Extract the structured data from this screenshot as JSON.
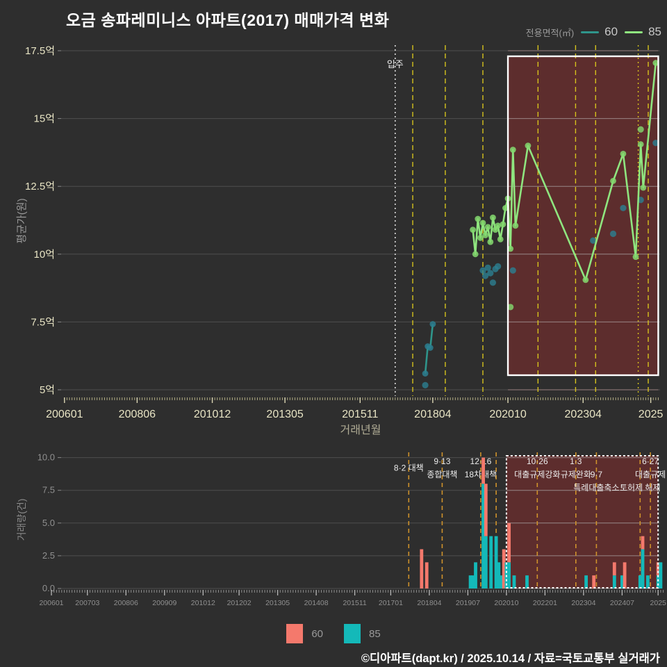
{
  "title": "오금 송파레미니스 아파트(2017) 매매가격 변화",
  "legend_top": {
    "label": "전용면적(㎡)",
    "items": [
      {
        "name": "60",
        "color": "#2f958b"
      },
      {
        "name": "85",
        "color": "#8fe57f"
      }
    ]
  },
  "legend_bottom": {
    "items": [
      {
        "name": "60",
        "color": "#f4796c"
      },
      {
        "name": "85",
        "color": "#14b9b9"
      }
    ]
  },
  "footer": "©디아파트(dapt.kr) / 2025.10.14 / 자료=국토교통부 실거래가",
  "colors": {
    "background": "#2e2e2e",
    "grid": "#4e4e4e",
    "grid_in_box": "#9b8080",
    "policy_line_top": "#d6c31d",
    "policy_line_bottom": "#cf922b",
    "move_in_line": "#dddddd",
    "box_fill": "rgba(150,45,45,0.45)",
    "box_border": "#ffffff",
    "tick_cream": "#e8e4c4",
    "tick_grey": "#909090",
    "annotation_text": "#ececec"
  },
  "chart_data": [
    {
      "type": "line",
      "name": "price-chart",
      "xlabel": "거래년월",
      "ylabel": "평균가(원)",
      "ylim": [
        4.8,
        17.7
      ],
      "grid": true,
      "legend_position": "top-right",
      "yticks": [
        {
          "v": 5,
          "label": "5억"
        },
        {
          "v": 7.5,
          "label": "7.5억"
        },
        {
          "v": 10,
          "label": "10억"
        },
        {
          "v": 12.5,
          "label": "12.5억"
        },
        {
          "v": 15,
          "label": "15억"
        },
        {
          "v": 17.5,
          "label": "17.5억"
        }
      ],
      "xticks": [
        {
          "date": "2006-01",
          "label": "200601"
        },
        {
          "date": "2008-06",
          "label": "200806"
        },
        {
          "date": "2010-12",
          "label": "201012"
        },
        {
          "date": "2013-05",
          "label": "201305"
        },
        {
          "date": "2015-11",
          "label": "201511"
        },
        {
          "date": "2018-04",
          "label": "201804"
        },
        {
          "date": "2020-10",
          "label": "202010"
        },
        {
          "date": "2023-04",
          "label": "202304"
        },
        {
          "date": "2025-07",
          "label": "2025"
        }
      ],
      "move_in_marker": {
        "date": "2017-01",
        "label": "입주"
      },
      "policy_lines": [
        {
          "date": "2017-08"
        },
        {
          "date": "2018-09"
        },
        {
          "date": "2019-12"
        },
        {
          "date": "2021-10"
        },
        {
          "date": "2023-01"
        },
        {
          "date": "2023-09"
        },
        {
          "date": "2025-02",
          "style": "dotted"
        },
        {
          "date": "2025-06"
        }
      ],
      "highlight_box": {
        "from": "2020-10",
        "to": "2025-10"
      },
      "series": [
        {
          "name": "60",
          "color": "#2f958b",
          "dot_color": "#2c7f91",
          "line": [
            [
              "2018-01",
              5.6
            ],
            [
              "2018-02",
              6.6
            ],
            [
              "2018-03",
              6.55
            ],
            [
              "2018-04",
              7.42
            ]
          ],
          "points": [
            [
              "2018-01",
              5.17
            ],
            [
              "2019-12",
              9.4
            ],
            [
              "2020-01",
              9.2
            ],
            [
              "2020-02",
              9.5
            ],
            [
              "2020-03",
              9.3
            ],
            [
              "2020-04",
              8.95
            ],
            [
              "2020-05",
              9.45
            ],
            [
              "2020-06",
              9.55
            ],
            [
              "2020-12",
              9.4
            ],
            [
              "2023-08",
              10.5
            ],
            [
              "2024-04",
              10.75
            ],
            [
              "2024-08",
              11.7
            ],
            [
              "2025-03",
              12.0
            ],
            [
              "2025-09",
              14.1
            ]
          ]
        },
        {
          "name": "85",
          "color": "#8fe57f",
          "dot_color": "#84d96e",
          "line": [
            [
              "2019-08",
              10.9
            ],
            [
              "2019-09",
              10.0
            ],
            [
              "2019-10",
              11.3
            ],
            [
              "2019-11",
              10.6
            ],
            [
              "2019-12",
              11.15
            ],
            [
              "2020-01",
              10.7
            ],
            [
              "2020-02",
              11.0
            ],
            [
              "2020-03",
              10.45
            ],
            [
              "2020-04",
              11.35
            ],
            [
              "2020-05",
              10.9
            ],
            [
              "2020-06",
              11.05
            ],
            [
              "2020-07",
              10.55
            ],
            [
              "2020-08",
              11.1
            ],
            [
              "2020-09",
              11.7
            ],
            [
              "2020-10",
              12.05
            ],
            [
              "2020-11",
              10.2
            ],
            [
              "2020-12",
              13.85
            ],
            [
              "2021-01",
              11.05
            ],
            [
              "2021-06",
              14.0
            ],
            [
              "2023-05",
              9.05
            ],
            [
              "2024-04",
              12.7
            ],
            [
              "2024-08",
              13.7
            ],
            [
              "2025-01",
              9.9
            ],
            [
              "2025-03",
              14.05
            ],
            [
              "2025-04",
              12.45
            ],
            [
              "2025-09",
              17.05
            ]
          ],
          "points": [
            [
              "2020-11",
              8.05
            ],
            [
              "2025-03",
              14.6
            ]
          ]
        }
      ]
    },
    {
      "type": "bar",
      "name": "volume-chart",
      "xlabel": "",
      "ylabel": "거래량(건)",
      "ylim": [
        0,
        10.5
      ],
      "grid": true,
      "stacked": true,
      "yticks": [
        {
          "v": 0,
          "label": "0.0"
        },
        {
          "v": 2.5,
          "label": "2.5"
        },
        {
          "v": 5,
          "label": "5.0"
        },
        {
          "v": 7.5,
          "label": "7.5"
        },
        {
          "v": 10,
          "label": "10.0"
        }
      ],
      "xticks": [
        {
          "date": "2006-01",
          "label": "200601"
        },
        {
          "date": "2007-03",
          "label": "200703"
        },
        {
          "date": "2008-06",
          "label": "200806"
        },
        {
          "date": "2009-09",
          "label": "200909"
        },
        {
          "date": "2010-12",
          "label": "201012"
        },
        {
          "date": "2012-02",
          "label": "201202"
        },
        {
          "date": "2013-05",
          "label": "201305"
        },
        {
          "date": "2014-08",
          "label": "201408"
        },
        {
          "date": "2015-11",
          "label": "201511"
        },
        {
          "date": "2017-01",
          "label": "201701"
        },
        {
          "date": "2018-04",
          "label": "201804"
        },
        {
          "date": "2019-07",
          "label": "201907"
        },
        {
          "date": "2020-10",
          "label": "202010"
        },
        {
          "date": "2022-01",
          "label": "202201"
        },
        {
          "date": "2023-04",
          "label": "202304"
        },
        {
          "date": "2024-07",
          "label": "202407"
        },
        {
          "date": "2025-09",
          "label": "2025"
        }
      ],
      "policy_lines": [
        {
          "date": "2017-08",
          "labels": [
            [
              1.5,
              "8·2 대책"
            ]
          ]
        },
        {
          "date": "2018-09",
          "labels": [
            [
              1,
              "9·13"
            ],
            [
              2,
              "종합대책"
            ]
          ]
        },
        {
          "date": "2019-12",
          "labels": [
            [
              1,
              "12·16"
            ],
            [
              2,
              "18차대책"
            ]
          ]
        },
        {
          "date": "2020-06",
          "labels": []
        },
        {
          "date": "2021-10",
          "labels": [
            [
              1,
              "10·26"
            ],
            [
              2,
              "대출규제강화"
            ]
          ]
        },
        {
          "date": "2023-01",
          "labels": [
            [
              1,
              "1·3"
            ],
            [
              2,
              "규제완화"
            ]
          ]
        },
        {
          "date": "2023-09",
          "labels": [
            [
              2,
              "9·7"
            ],
            [
              3,
              "특례대출축소"
            ]
          ]
        },
        {
          "date": "2025-02",
          "labels": [
            [
              3,
              "토허제 해제"
            ]
          ]
        },
        {
          "date": "2025-06",
          "labels": [
            [
              1,
              "6·27"
            ],
            [
              2,
              "대출규제"
            ]
          ]
        }
      ],
      "highlight_box": {
        "from": "2020-10",
        "to": "2025-09"
      },
      "categories_note": "monthly transaction counts, stacked 85(bottom)+60(top)",
      "bars": [
        {
          "date": "2018-01",
          "s60": 3,
          "s85": 0
        },
        {
          "date": "2018-03",
          "s60": 2,
          "s85": 0
        },
        {
          "date": "2019-08",
          "s60": 0,
          "s85": 1
        },
        {
          "date": "2019-09",
          "s60": 0,
          "s85": 1
        },
        {
          "date": "2019-10",
          "s60": 0,
          "s85": 2
        },
        {
          "date": "2020-01",
          "s60": 2,
          "s85": 8
        },
        {
          "date": "2020-02",
          "s60": 4,
          "s85": 4
        },
        {
          "date": "2020-04",
          "s60": 0,
          "s85": 4
        },
        {
          "date": "2020-06",
          "s60": 0,
          "s85": 4
        },
        {
          "date": "2020-07",
          "s60": 0,
          "s85": 2
        },
        {
          "date": "2020-08",
          "s60": 0,
          "s85": 1
        },
        {
          "date": "2020-09",
          "s60": 3,
          "s85": 0
        },
        {
          "date": "2020-10",
          "s60": 0,
          "s85": 2
        },
        {
          "date": "2020-11",
          "s60": 3,
          "s85": 2
        },
        {
          "date": "2021-01",
          "s60": 0,
          "s85": 1
        },
        {
          "date": "2021-06",
          "s60": 0,
          "s85": 1
        },
        {
          "date": "2023-05",
          "s60": 0,
          "s85": 1
        },
        {
          "date": "2023-08",
          "s60": 1,
          "s85": 0
        },
        {
          "date": "2024-04",
          "s60": 1,
          "s85": 1
        },
        {
          "date": "2024-07",
          "s60": 0,
          "s85": 1
        },
        {
          "date": "2024-08",
          "s60": 2,
          "s85": 0
        },
        {
          "date": "2025-02",
          "s60": 0,
          "s85": 1
        },
        {
          "date": "2025-03",
          "s60": 1,
          "s85": 3
        },
        {
          "date": "2025-05",
          "s60": 0,
          "s85": 1
        },
        {
          "date": "2025-09",
          "s60": 1,
          "s85": 1
        },
        {
          "date": "2025-10",
          "s60": 0,
          "s85": 2
        }
      ]
    }
  ]
}
